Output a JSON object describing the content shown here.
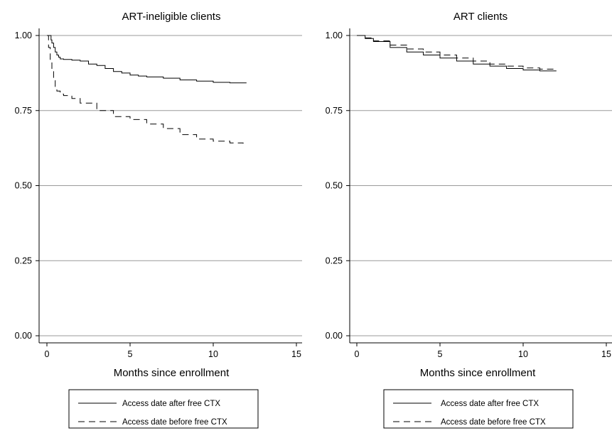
{
  "chart_data": [
    {
      "type": "line",
      "title": "ART-ineligible clients",
      "xlabel": "Months since enrollment",
      "ylabel": "",
      "xlim": [
        0,
        15
      ],
      "ylim": [
        0,
        1
      ],
      "xticks": [
        0,
        5,
        10,
        15
      ],
      "yticks": [
        0.0,
        0.25,
        0.5,
        0.75,
        1.0
      ],
      "ytick_labels": [
        "0.00",
        "0.25",
        "0.50",
        "0.75",
        "1.00"
      ],
      "grid": "horizontal",
      "legend_position": "bottom",
      "series": [
        {
          "name": "Access date after free CTX",
          "style": "solid",
          "x": [
            0,
            0.25,
            0.3,
            0.4,
            0.5,
            0.6,
            0.7,
            0.8,
            1.0,
            1.5,
            2.0,
            2.5,
            3.0,
            3.5,
            4.0,
            4.5,
            5.0,
            5.5,
            6.0,
            7.0,
            8.0,
            9.0,
            10.0,
            11.0,
            12.0
          ],
          "y": [
            1.0,
            0.985,
            0.975,
            0.96,
            0.945,
            0.935,
            0.928,
            0.922,
            0.92,
            0.918,
            0.915,
            0.905,
            0.9,
            0.89,
            0.88,
            0.875,
            0.868,
            0.865,
            0.862,
            0.858,
            0.852,
            0.848,
            0.844,
            0.842,
            0.842
          ]
        },
        {
          "name": "Access date before free CTX",
          "style": "dashed",
          "x": [
            0,
            0.1,
            0.2,
            0.3,
            0.4,
            0.5,
            0.6,
            0.8,
            1.0,
            1.5,
            2.0,
            3.0,
            4.0,
            5.0,
            6.0,
            7.0,
            8.0,
            9.0,
            10.0,
            11.0,
            11.8
          ],
          "y": [
            1.0,
            0.96,
            0.92,
            0.88,
            0.85,
            0.83,
            0.815,
            0.805,
            0.8,
            0.79,
            0.775,
            0.75,
            0.73,
            0.72,
            0.705,
            0.69,
            0.67,
            0.655,
            0.648,
            0.642,
            0.64
          ]
        }
      ]
    },
    {
      "type": "line",
      "title": "ART clients",
      "xlabel": "Months since enrollment",
      "ylabel": "",
      "xlim": [
        0,
        15
      ],
      "ylim": [
        0,
        1
      ],
      "xticks": [
        0,
        5,
        10,
        15
      ],
      "yticks": [
        0.0,
        0.25,
        0.5,
        0.75,
        1.0
      ],
      "ytick_labels": [
        "0.00",
        "0.25",
        "0.50",
        "0.75",
        "1.00"
      ],
      "grid": "horizontal",
      "legend_position": "bottom",
      "series": [
        {
          "name": "Access date after free CTX",
          "style": "solid",
          "x": [
            0,
            0.5,
            1.0,
            2.0,
            3.0,
            4.0,
            5.0,
            6.0,
            7.0,
            8.0,
            9.0,
            10.0,
            11.0,
            12.0
          ],
          "y": [
            1.0,
            0.99,
            0.98,
            0.96,
            0.945,
            0.935,
            0.925,
            0.915,
            0.905,
            0.898,
            0.89,
            0.885,
            0.882,
            0.882
          ]
        },
        {
          "name": "Access date before free CTX",
          "style": "dashed",
          "x": [
            0,
            0.5,
            1.0,
            2.0,
            3.0,
            4.0,
            5.0,
            6.0,
            7.0,
            8.0,
            9.0,
            10.0,
            11.0,
            12.0
          ],
          "y": [
            1.0,
            0.992,
            0.982,
            0.968,
            0.955,
            0.945,
            0.935,
            0.925,
            0.915,
            0.905,
            0.898,
            0.892,
            0.888,
            0.885
          ]
        }
      ]
    }
  ]
}
